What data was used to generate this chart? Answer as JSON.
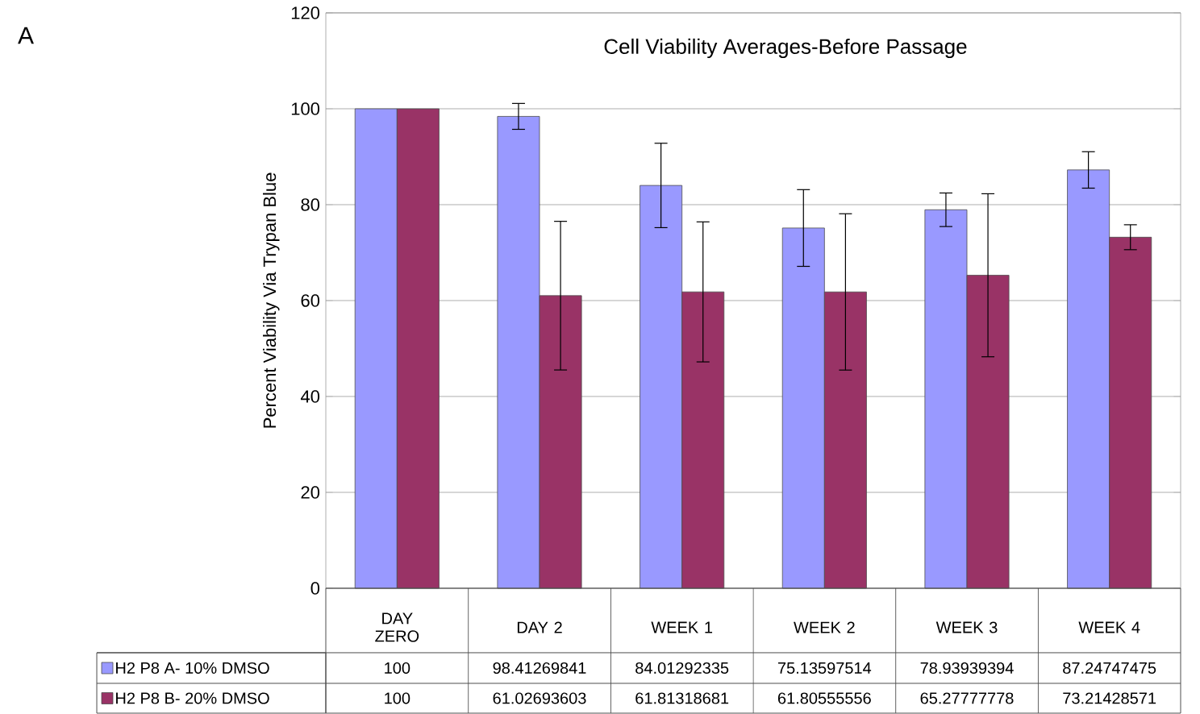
{
  "chart_data": {
    "type": "bar",
    "title": "Cell Viability Averages-Before Passage",
    "ylabel": "Percent Viability Via Trypan Blue",
    "annotations": [
      "A"
    ],
    "categories": [
      "DAY ZERO",
      "DAY 2",
      "WEEK 1",
      "WEEK 2",
      "WEEK 3",
      "WEEK 4"
    ],
    "series": [
      {
        "name": "H2 P8 A- 10% DMSO",
        "color": "#9999ff",
        "values": [
          100,
          98.41269841,
          84.01292335,
          75.13597514,
          78.93939394,
          87.24747475
        ],
        "errors": [
          null,
          2.7,
          8.8,
          8.0,
          3.5,
          3.8
        ]
      },
      {
        "name": "H2 P8 B- 20% DMSO",
        "color": "#993366",
        "values": [
          100,
          61.02693603,
          61.81318681,
          61.80555556,
          65.27777778,
          73.21428571
        ],
        "errors": [
          null,
          15.5,
          14.6,
          16.3,
          17.0,
          2.6
        ]
      }
    ],
    "ylim": [
      0,
      120
    ],
    "yticks": [
      0,
      20,
      40,
      60,
      80,
      100,
      120
    ],
    "grid": "y",
    "legend": "bottom",
    "data_labels": true
  }
}
